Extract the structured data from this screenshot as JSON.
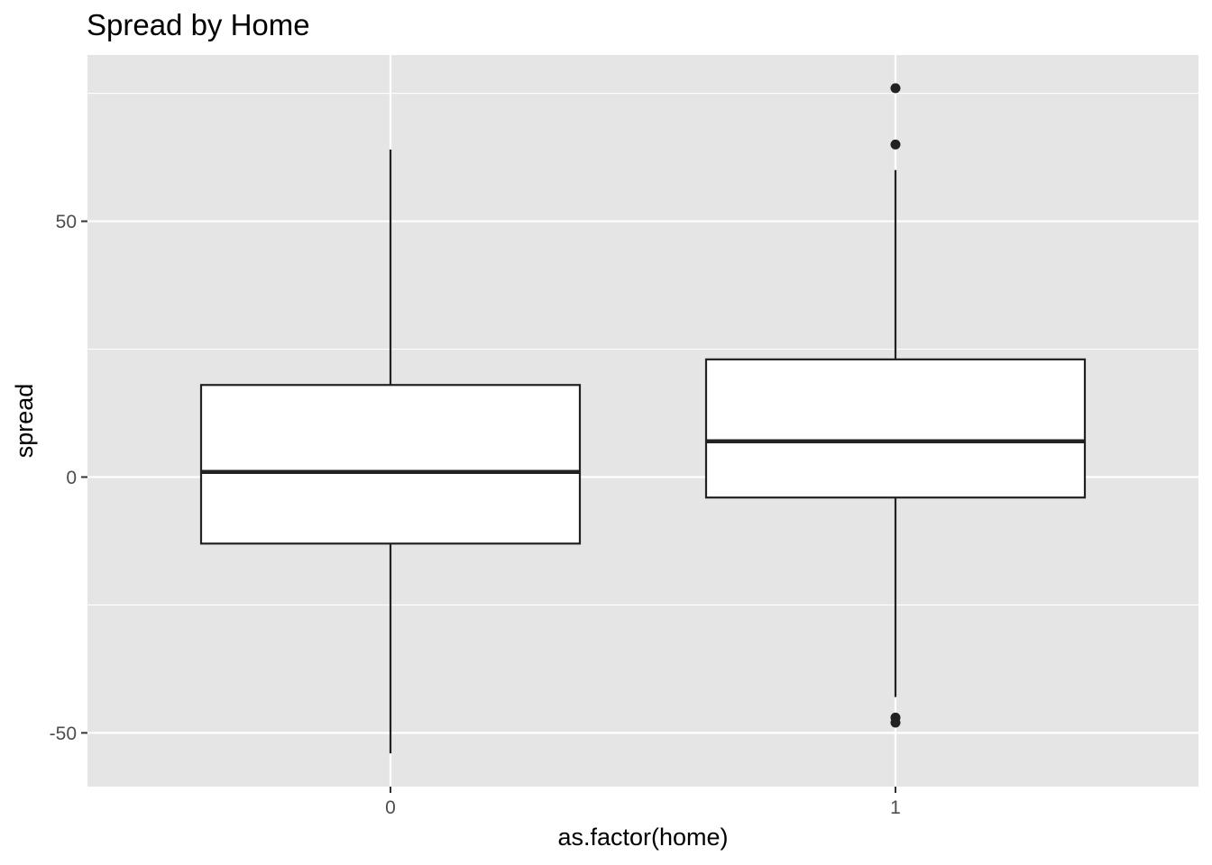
{
  "chart_data": {
    "type": "box",
    "title": "Spread by Home",
    "xlabel": "as.factor(home)",
    "ylabel": "spread",
    "categories": [
      "0",
      "1"
    ],
    "ylim": [
      -60.5,
      82.5
    ],
    "yticks": [
      -50,
      0,
      50
    ],
    "ytick_labels": [
      "-50",
      "0",
      "50"
    ],
    "grid": true,
    "boxes": [
      {
        "category": "0",
        "lower_whisker": -54,
        "q1": -13,
        "median": 1,
        "q3": 18,
        "upper_whisker": 64,
        "outliers": []
      },
      {
        "category": "1",
        "lower_whisker": -43,
        "q1": -4,
        "median": 7,
        "q3": 23,
        "upper_whisker": 60,
        "outliers": [
          76,
          65,
          -47,
          -48
        ]
      }
    ],
    "colors": {
      "panel": "#e5e5e5",
      "grid": "#ffffff",
      "box_fill": "#ffffff",
      "line": "#222222",
      "outlier": "#222222"
    }
  }
}
